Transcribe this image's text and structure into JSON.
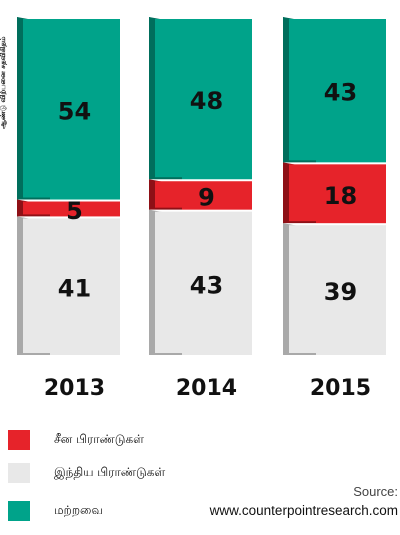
{
  "chart_data": {
    "type": "bar",
    "stacked": true,
    "categories": [
      "2013",
      "2014",
      "2015"
    ],
    "series": [
      {
        "name": "இந்திய பிராண்டுகள்",
        "color": "#e8e8e8",
        "values": [
          41,
          43,
          39
        ]
      },
      {
        "name": "சீன பிராண்டுகள்",
        "color": "#e6232a",
        "values": [
          5,
          9,
          18
        ]
      },
      {
        "name": "மற்றவை",
        "color": "#00a38a",
        "values": [
          54,
          48,
          43
        ]
      }
    ],
    "ylabel": "ஆண்டு விற்பனை சதவிகிதம்",
    "ylim": [
      0,
      100
    ],
    "legend_position": "bottom-left"
  },
  "legend": [
    {
      "label": "சீன பிராண்டுகள்",
      "color": "#e6232a"
    },
    {
      "label": "இந்திய பிராண்டுகள்",
      "color": "#e8e8e8"
    },
    {
      "label": "மற்றவை",
      "color": "#00a38a"
    }
  ],
  "source": {
    "label": "Source:",
    "url": "www.counterpointresearch.com"
  }
}
